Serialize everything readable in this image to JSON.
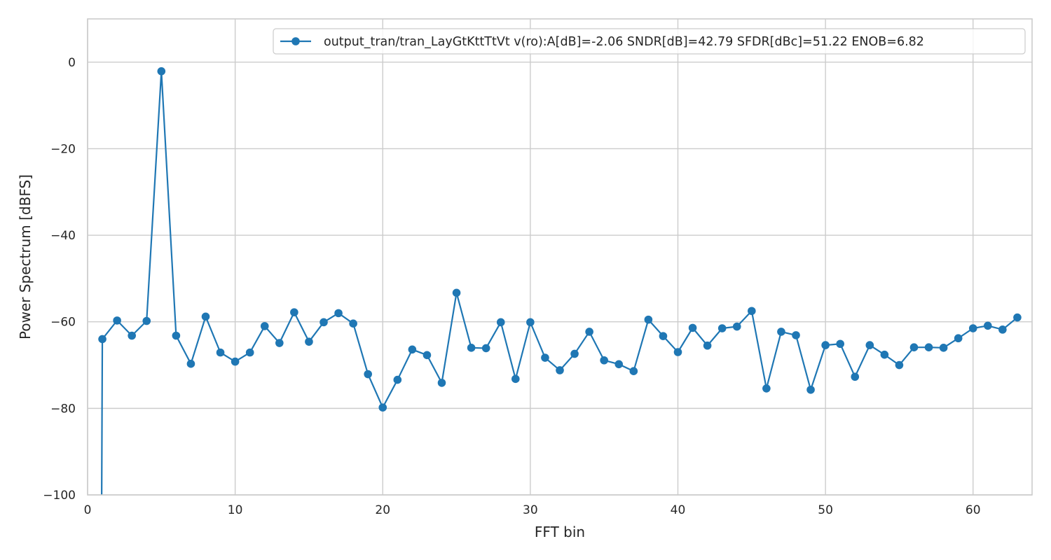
{
  "chart_data": {
    "type": "line",
    "title": "",
    "xlabel": "FFT bin",
    "ylabel": "Power Spectrum [dBFS]",
    "xlim": [
      0,
      64
    ],
    "ylim": [
      -100,
      10
    ],
    "xticks": [
      0,
      10,
      20,
      30,
      40,
      50,
      60
    ],
    "yticks": [
      0,
      -20,
      -40,
      -60,
      -80,
      -100
    ],
    "xtick_labels": [
      "0",
      "10",
      "20",
      "30",
      "40",
      "50",
      "60"
    ],
    "ytick_labels": [
      "0",
      "−20",
      "−40",
      "−60",
      "−80",
      "−100"
    ],
    "grid": true,
    "legend_position": "top-right",
    "series": [
      {
        "name": "output_tran/tran_LayGtKttTtVt v(ro):A[dB]=-2.06 SNDR[dB]=42.79 SFDR[dBc]=51.22 ENOB=6.82",
        "color": "#1f77b4",
        "marker": "circle",
        "x": [
          1,
          2,
          3,
          4,
          5,
          6,
          7,
          8,
          9,
          10,
          11,
          12,
          13,
          14,
          15,
          16,
          17,
          18,
          19,
          20,
          21,
          22,
          23,
          24,
          25,
          26,
          27,
          28,
          29,
          30,
          31,
          32,
          33,
          34,
          35,
          36,
          37,
          38,
          39,
          40,
          41,
          42,
          43,
          44,
          45,
          46,
          47,
          48,
          49,
          50,
          51,
          52,
          53,
          54,
          55,
          56,
          57,
          58,
          59,
          60,
          61,
          62,
          63
        ],
        "values": [
          -64.0,
          -59.7,
          -63.2,
          -59.8,
          -2.1,
          -63.2,
          -69.7,
          -58.8,
          -67.1,
          -69.2,
          -67.1,
          -61.0,
          -64.9,
          -57.8,
          -64.6,
          -60.1,
          -58.0,
          -60.4,
          -72.1,
          -79.8,
          -73.4,
          -66.4,
          -67.7,
          -74.1,
          -53.3,
          -66.0,
          -66.1,
          -60.1,
          -73.2,
          -60.1,
          -68.3,
          -71.2,
          -67.4,
          -62.3,
          -68.9,
          -69.8,
          -71.4,
          -59.5,
          -63.3,
          -67.0,
          -61.4,
          -65.5,
          -61.5,
          -61.1,
          -57.5,
          -75.4,
          -62.3,
          -63.1,
          -75.7,
          -65.4,
          -65.1,
          -72.7,
          -65.4,
          -67.6,
          -70.0,
          -65.9,
          -65.9,
          -66.0,
          -63.8,
          -61.5,
          -60.9,
          -61.8,
          -59.0
        ]
      }
    ]
  }
}
